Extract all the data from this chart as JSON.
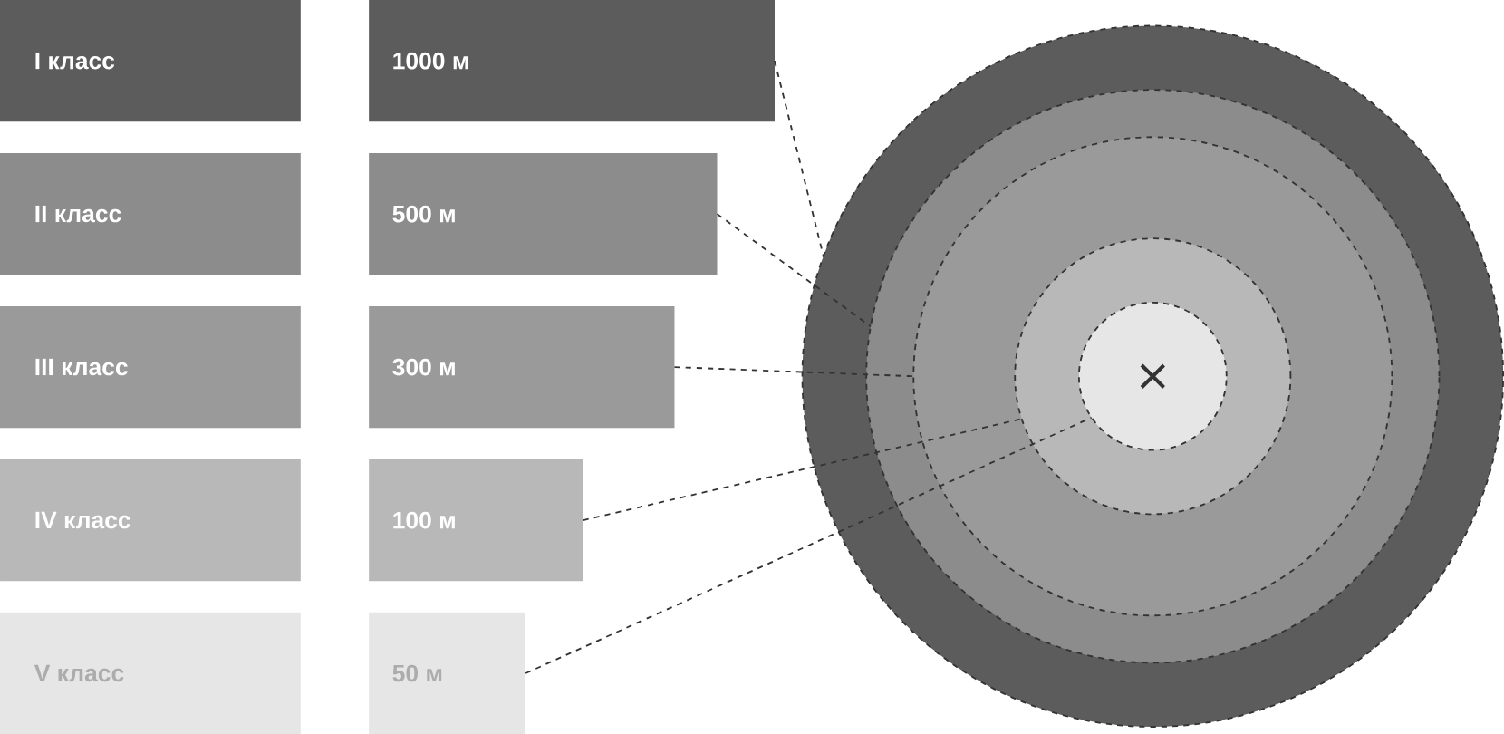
{
  "chart_data": {
    "type": "other",
    "categories": [
      "I класс",
      "II класс",
      "III класс",
      "IV класс",
      "V класс"
    ],
    "values": [
      1000,
      500,
      300,
      100,
      50
    ],
    "value_labels": [
      "1000 м",
      "500 м",
      "300 м",
      "100 м",
      "50 м"
    ],
    "colors": [
      "#5c5c5c",
      "#8c8c8c",
      "#9a9a9a",
      "#b8b8b8",
      "#e6e6e6"
    ]
  }
}
